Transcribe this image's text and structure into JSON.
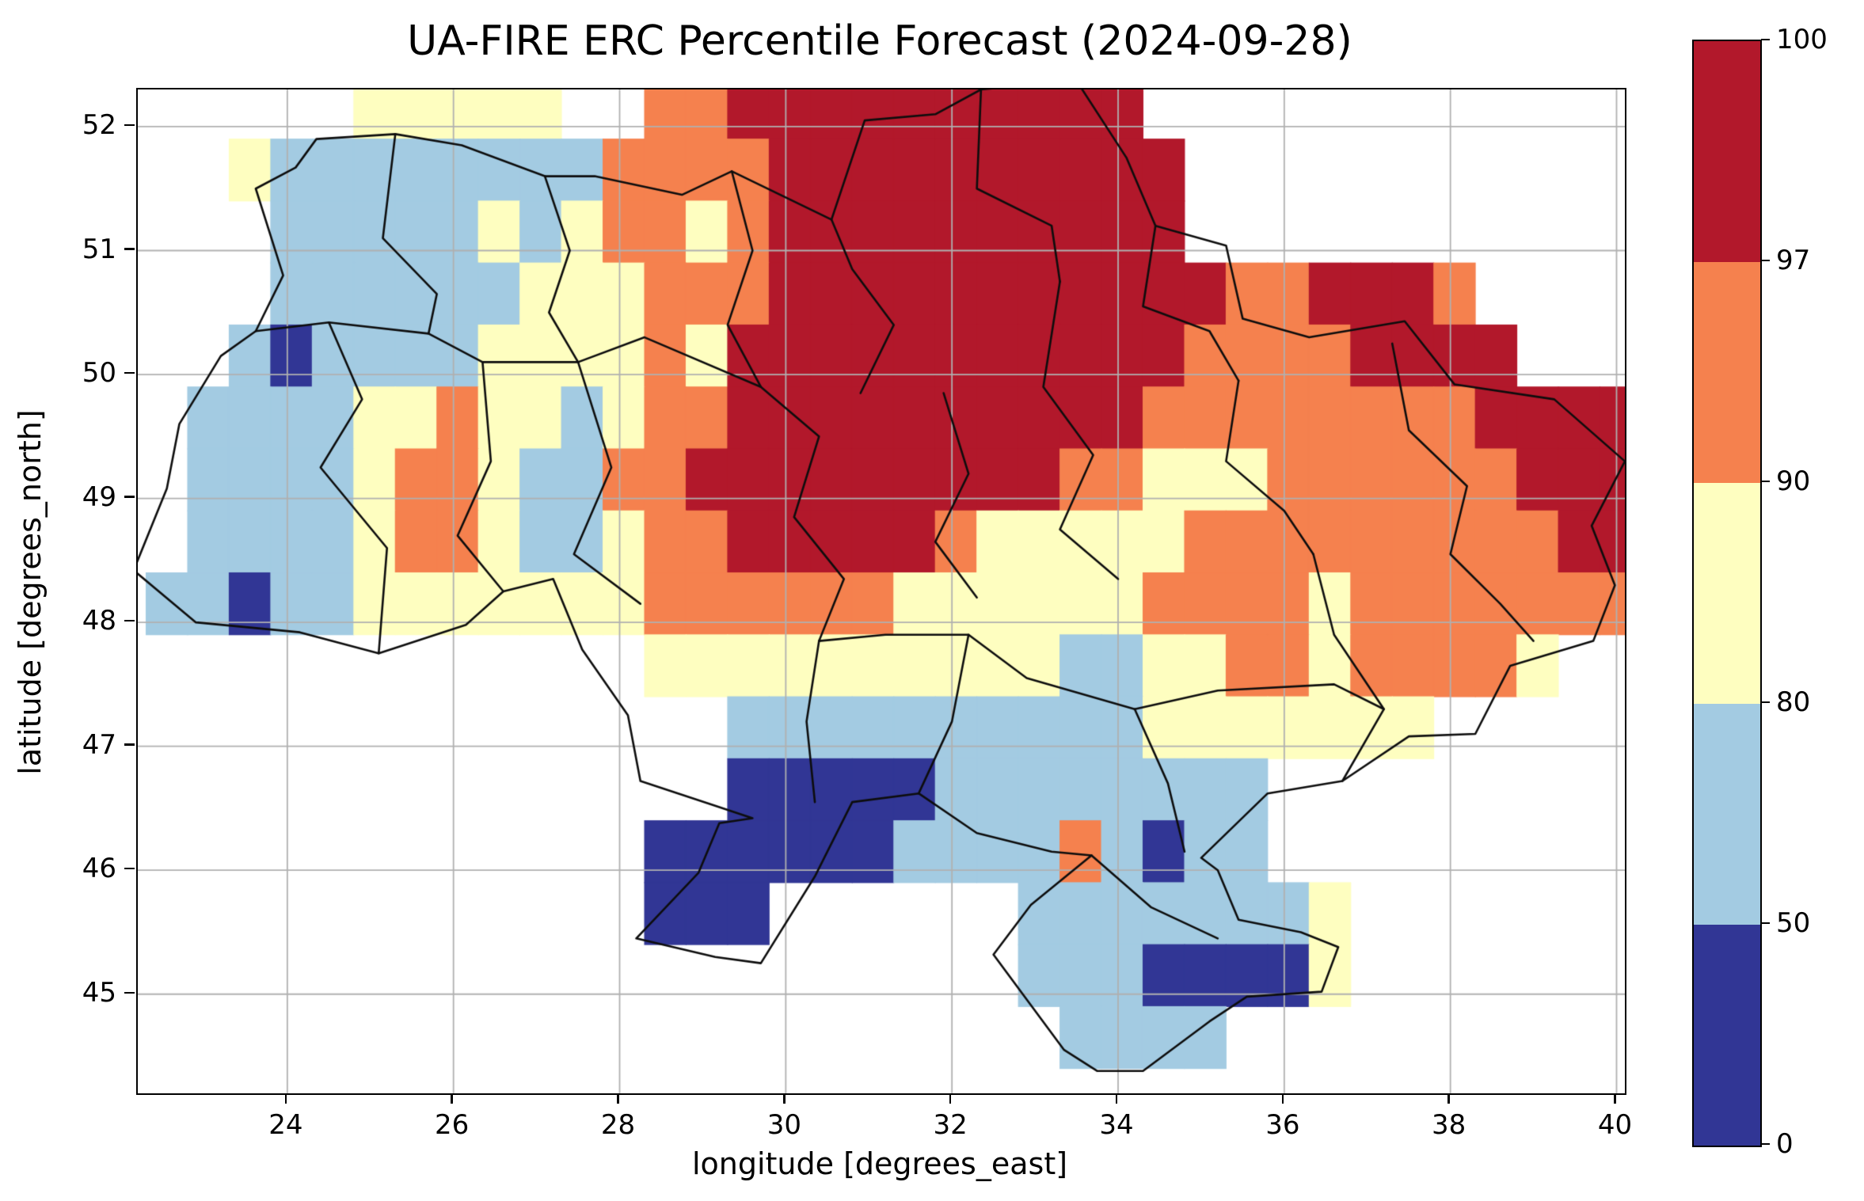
{
  "chart_data": {
    "type": "heatmap",
    "title": "UA-FIRE ERC Percentile Forecast (2024-09-28)",
    "xlabel": "longitude [degrees_east]",
    "ylabel": "latitude [degrees_north]",
    "xlim": [
      22.2,
      40.1
    ],
    "ylim": [
      44.2,
      52.3
    ],
    "xticks": [
      24,
      26,
      28,
      30,
      32,
      34,
      36,
      38,
      40
    ],
    "yticks": [
      45,
      46,
      47,
      48,
      49,
      50,
      51,
      52
    ],
    "grid": true,
    "grid_color": "#b0b0b0",
    "legend_position": "right",
    "colorbar": {
      "boundaries": [
        0,
        50,
        80,
        90,
        97,
        100
      ],
      "tick_labels": [
        "0",
        "50",
        "80",
        "90",
        "97",
        "100"
      ],
      "colors": [
        "#313695",
        "#a3cbe2",
        "#fefec0",
        "#f5814e",
        "#b2182b"
      ],
      "categories": [
        "0-50",
        "50-80",
        "80-90",
        "90-97",
        "97-100"
      ]
    },
    "grid_def": {
      "lon0": 22.3,
      "dlon": 0.5,
      "lat0": 52.4,
      "dlat": 0.5
    },
    "cells": [
      [
        -1,
        -1,
        -1,
        -1,
        -1,
        2,
        2,
        2,
        2,
        2,
        -1,
        -1,
        3,
        3,
        4,
        4,
        4,
        4,
        4,
        4,
        4,
        4,
        4,
        4,
        -1,
        -1,
        -1,
        -1,
        -1,
        -1,
        -1,
        -1,
        -1,
        -1,
        -1,
        -1
      ],
      [
        -1,
        -1,
        2,
        1,
        1,
        1,
        1,
        1,
        1,
        1,
        1,
        3,
        3,
        3,
        3,
        4,
        4,
        4,
        4,
        4,
        4,
        4,
        4,
        4,
        4,
        -1,
        -1,
        -1,
        -1,
        -1,
        -1,
        -1,
        -1,
        -1,
        -1,
        -1
      ],
      [
        -1,
        -1,
        -1,
        1,
        1,
        1,
        1,
        1,
        2,
        1,
        2,
        3,
        3,
        2,
        3,
        4,
        4,
        4,
        4,
        4,
        4,
        4,
        4,
        4,
        4,
        -1,
        -1,
        -1,
        -1,
        -1,
        -1,
        -1,
        -1,
        -1,
        -1,
        -1
      ],
      [
        -1,
        -1,
        -1,
        1,
        1,
        1,
        1,
        1,
        1,
        2,
        2,
        2,
        3,
        3,
        3,
        4,
        4,
        4,
        4,
        4,
        4,
        4,
        4,
        4,
        4,
        4,
        3,
        3,
        4,
        4,
        4,
        3,
        -1,
        -1,
        -1,
        -1
      ],
      [
        -1,
        -1,
        1,
        0,
        1,
        1,
        1,
        1,
        2,
        2,
        2,
        2,
        3,
        2,
        4,
        4,
        4,
        4,
        4,
        4,
        4,
        4,
        4,
        4,
        4,
        3,
        3,
        3,
        3,
        4,
        4,
        4,
        4,
        -1,
        -1,
        -1
      ],
      [
        -1,
        1,
        1,
        1,
        1,
        2,
        2,
        3,
        2,
        2,
        1,
        2,
        3,
        3,
        4,
        4,
        4,
        4,
        4,
        4,
        4,
        4,
        4,
        4,
        3,
        3,
        3,
        3,
        3,
        3,
        3,
        3,
        4,
        4,
        4,
        4
      ],
      [
        -1,
        1,
        1,
        1,
        1,
        2,
        3,
        3,
        2,
        1,
        1,
        3,
        3,
        4,
        4,
        4,
        4,
        4,
        4,
        4,
        4,
        4,
        3,
        3,
        2,
        2,
        2,
        3,
        3,
        3,
        3,
        3,
        3,
        4,
        4,
        4
      ],
      [
        -1,
        1,
        1,
        1,
        1,
        2,
        3,
        3,
        2,
        1,
        1,
        2,
        3,
        3,
        4,
        4,
        4,
        4,
        4,
        3,
        2,
        2,
        2,
        2,
        2,
        3,
        3,
        3,
        3,
        3,
        3,
        3,
        3,
        3,
        4,
        4
      ],
      [
        1,
        1,
        0,
        1,
        1,
        2,
        2,
        2,
        2,
        2,
        2,
        2,
        3,
        3,
        3,
        3,
        3,
        3,
        2,
        2,
        2,
        2,
        2,
        2,
        3,
        3,
        3,
        3,
        2,
        3,
        3,
        3,
        3,
        3,
        3,
        3
      ],
      [
        -1,
        -1,
        -1,
        -1,
        -1,
        -1,
        -1,
        -1,
        -1,
        -1,
        -1,
        -1,
        2,
        2,
        2,
        2,
        2,
        2,
        2,
        2,
        2,
        2,
        1,
        1,
        2,
        2,
        3,
        3,
        2,
        3,
        3,
        3,
        3,
        2,
        -1,
        -1
      ],
      [
        -1,
        -1,
        -1,
        -1,
        -1,
        -1,
        -1,
        -1,
        -1,
        -1,
        -1,
        -1,
        -1,
        -1,
        1,
        1,
        1,
        1,
        1,
        1,
        1,
        1,
        1,
        1,
        2,
        2,
        2,
        2,
        2,
        2,
        2,
        -1,
        -1,
        -1,
        -1,
        -1
      ],
      [
        -1,
        -1,
        -1,
        -1,
        -1,
        -1,
        -1,
        -1,
        -1,
        -1,
        -1,
        -1,
        -1,
        -1,
        0,
        0,
        0,
        0,
        0,
        1,
        1,
        1,
        1,
        1,
        1,
        1,
        1,
        -1,
        -1,
        -1,
        -1,
        -1,
        -1,
        -1,
        -1,
        -1
      ],
      [
        -1,
        -1,
        -1,
        -1,
        -1,
        -1,
        -1,
        -1,
        -1,
        -1,
        -1,
        -1,
        0,
        0,
        0,
        0,
        0,
        0,
        1,
        1,
        1,
        1,
        3,
        1,
        0,
        1,
        1,
        -1,
        -1,
        -1,
        -1,
        -1,
        -1,
        -1,
        -1,
        -1
      ],
      [
        -1,
        -1,
        -1,
        -1,
        -1,
        -1,
        -1,
        -1,
        -1,
        -1,
        -1,
        -1,
        0,
        0,
        0,
        -1,
        -1,
        -1,
        -1,
        -1,
        -1,
        1,
        1,
        1,
        1,
        1,
        1,
        1,
        2,
        -1,
        -1,
        -1,
        -1,
        -1,
        -1,
        -1
      ],
      [
        -1,
        -1,
        -1,
        -1,
        -1,
        -1,
        -1,
        -1,
        -1,
        -1,
        -1,
        -1,
        -1,
        -1,
        -1,
        -1,
        -1,
        -1,
        -1,
        -1,
        -1,
        1,
        1,
        1,
        0,
        0,
        0,
        0,
        2,
        -1,
        -1,
        -1,
        -1,
        -1,
        -1,
        -1
      ],
      [
        -1,
        -1,
        -1,
        -1,
        -1,
        -1,
        -1,
        -1,
        -1,
        -1,
        -1,
        -1,
        -1,
        -1,
        -1,
        -1,
        -1,
        -1,
        -1,
        -1,
        -1,
        -1,
        1,
        1,
        1,
        1,
        -1,
        -1,
        -1,
        -1,
        -1,
        -1,
        -1,
        -1,
        -1,
        -1
      ]
    ],
    "outline": [
      [
        23.62,
        51.5
      ],
      [
        24.1,
        51.67
      ],
      [
        24.35,
        51.9
      ],
      [
        25.3,
        51.94
      ],
      [
        26.1,
        51.85
      ],
      [
        27.1,
        51.6
      ],
      [
        27.7,
        51.6
      ],
      [
        28.75,
        51.45
      ],
      [
        29.35,
        51.64
      ],
      [
        30.55,
        51.25
      ],
      [
        30.95,
        52.05
      ],
      [
        31.8,
        52.1
      ],
      [
        32.35,
        52.3
      ],
      [
        33.5,
        52.37
      ],
      [
        34.1,
        51.75
      ],
      [
        34.45,
        51.2
      ],
      [
        35.3,
        51.04
      ],
      [
        35.5,
        50.45
      ],
      [
        36.3,
        50.3
      ],
      [
        37.45,
        50.43
      ],
      [
        38.05,
        49.92
      ],
      [
        39.25,
        49.8
      ],
      [
        40.1,
        49.3
      ],
      [
        39.7,
        48.78
      ],
      [
        39.98,
        48.3
      ],
      [
        39.72,
        47.85
      ],
      [
        38.72,
        47.65
      ],
      [
        38.3,
        47.1
      ],
      [
        37.5,
        47.08
      ],
      [
        36.7,
        46.72
      ],
      [
        35.8,
        46.62
      ],
      [
        35.0,
        46.1
      ],
      [
        35.2,
        46.0
      ],
      [
        35.45,
        45.6
      ],
      [
        36.2,
        45.5
      ],
      [
        36.65,
        45.38
      ],
      [
        36.45,
        45.02
      ],
      [
        35.55,
        44.98
      ],
      [
        35.1,
        44.78
      ],
      [
        34.3,
        44.38
      ],
      [
        33.75,
        44.38
      ],
      [
        33.35,
        44.55
      ],
      [
        32.5,
        45.32
      ],
      [
        32.95,
        45.72
      ],
      [
        33.68,
        46.12
      ],
      [
        33.2,
        46.15
      ],
      [
        32.3,
        46.3
      ],
      [
        31.6,
        46.62
      ],
      [
        30.8,
        46.55
      ],
      [
        30.35,
        45.95
      ],
      [
        29.7,
        45.25
      ],
      [
        29.15,
        45.3
      ],
      [
        28.2,
        45.45
      ],
      [
        28.95,
        45.98
      ],
      [
        29.2,
        46.38
      ],
      [
        29.6,
        46.42
      ],
      [
        29.15,
        46.52
      ],
      [
        28.25,
        46.72
      ],
      [
        28.1,
        47.25
      ],
      [
        27.55,
        47.78
      ],
      [
        27.2,
        48.35
      ],
      [
        26.6,
        48.25
      ],
      [
        26.15,
        47.98
      ],
      [
        25.1,
        47.75
      ],
      [
        24.15,
        47.92
      ],
      [
        22.9,
        48.0
      ],
      [
        22.15,
        48.42
      ],
      [
        22.55,
        49.08
      ],
      [
        22.7,
        49.6
      ],
      [
        23.2,
        50.15
      ],
      [
        23.62,
        50.35
      ],
      [
        23.95,
        50.8
      ]
    ],
    "internal_borders": [
      [
        [
          25.3,
          51.94
        ],
        [
          25.15,
          51.1
        ],
        [
          25.8,
          50.65
        ],
        [
          25.7,
          50.33
        ]
      ],
      [
        [
          27.1,
          51.6
        ],
        [
          27.4,
          51.0
        ],
        [
          27.15,
          50.5
        ],
        [
          27.5,
          50.1
        ]
      ],
      [
        [
          29.35,
          51.64
        ],
        [
          29.6,
          51.0
        ],
        [
          29.3,
          50.4
        ],
        [
          29.7,
          49.9
        ]
      ],
      [
        [
          30.55,
          51.25
        ],
        [
          30.8,
          50.85
        ],
        [
          31.3,
          50.4
        ],
        [
          30.9,
          49.85
        ]
      ],
      [
        [
          32.35,
          52.3
        ],
        [
          32.3,
          51.5
        ],
        [
          33.2,
          51.2
        ],
        [
          33.3,
          50.75
        ]
      ],
      [
        [
          34.45,
          51.2
        ],
        [
          34.3,
          50.55
        ],
        [
          35.1,
          50.35
        ],
        [
          35.45,
          49.95
        ]
      ],
      [
        [
          23.62,
          50.35
        ],
        [
          24.5,
          50.42
        ],
        [
          25.7,
          50.33
        ],
        [
          26.35,
          50.1
        ],
        [
          27.5,
          50.1
        ],
        [
          28.3,
          50.3
        ],
        [
          29.7,
          49.9
        ]
      ],
      [
        [
          26.35,
          50.1
        ],
        [
          26.45,
          49.3
        ],
        [
          26.05,
          48.7
        ],
        [
          26.6,
          48.25
        ]
      ],
      [
        [
          27.5,
          50.1
        ],
        [
          27.9,
          49.25
        ],
        [
          27.45,
          48.55
        ],
        [
          28.25,
          48.15
        ]
      ],
      [
        [
          24.5,
          50.42
        ],
        [
          24.9,
          49.8
        ],
        [
          24.4,
          49.25
        ],
        [
          25.2,
          48.6
        ],
        [
          25.1,
          47.75
        ]
      ],
      [
        [
          29.7,
          49.9
        ],
        [
          30.4,
          49.5
        ],
        [
          30.1,
          48.85
        ],
        [
          30.7,
          48.35
        ],
        [
          30.4,
          47.85
        ]
      ],
      [
        [
          31.9,
          49.85
        ],
        [
          32.2,
          49.2
        ],
        [
          31.8,
          48.65
        ],
        [
          32.3,
          48.2
        ]
      ],
      [
        [
          33.3,
          50.75
        ],
        [
          33.1,
          49.9
        ],
        [
          33.7,
          49.35
        ],
        [
          33.3,
          48.75
        ],
        [
          34.0,
          48.35
        ]
      ],
      [
        [
          35.45,
          49.95
        ],
        [
          35.3,
          49.3
        ],
        [
          36.0,
          48.9
        ],
        [
          36.35,
          48.55
        ]
      ],
      [
        [
          37.3,
          50.25
        ],
        [
          37.5,
          49.55
        ],
        [
          38.2,
          49.1
        ],
        [
          38.0,
          48.55
        ],
        [
          38.6,
          48.15
        ],
        [
          39.0,
          47.85
        ]
      ],
      [
        [
          36.35,
          48.55
        ],
        [
          36.6,
          47.9
        ],
        [
          37.2,
          47.3
        ],
        [
          36.7,
          46.72
        ]
      ],
      [
        [
          30.4,
          47.85
        ],
        [
          31.2,
          47.9
        ],
        [
          32.2,
          47.9
        ],
        [
          32.9,
          47.55
        ],
        [
          34.2,
          47.3
        ],
        [
          35.2,
          47.45
        ],
        [
          36.6,
          47.5
        ],
        [
          37.2,
          47.3
        ]
      ],
      [
        [
          32.2,
          47.9
        ],
        [
          32.0,
          47.2
        ],
        [
          31.6,
          46.62
        ]
      ],
      [
        [
          30.4,
          47.85
        ],
        [
          30.25,
          47.2
        ],
        [
          30.35,
          46.55
        ]
      ],
      [
        [
          34.2,
          47.3
        ],
        [
          34.6,
          46.7
        ],
        [
          34.8,
          46.15
        ]
      ],
      [
        [
          33.68,
          46.12
        ],
        [
          34.4,
          45.7
        ],
        [
          35.2,
          45.45
        ]
      ]
    ]
  }
}
